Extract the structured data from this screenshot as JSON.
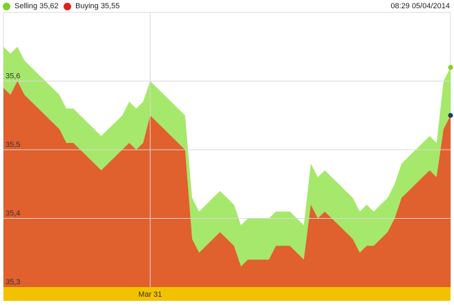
{
  "legend": {
    "selling": {
      "label": "Selling 35,62",
      "color": "#7ed321"
    },
    "buying": {
      "label": "Buying 35,55",
      "color": "#e02020"
    }
  },
  "timestamp": "08:29 05/04/2014",
  "colors": {
    "selling_fill": "#a6e86b",
    "buying_fill": "#e0602e",
    "timeline": "#f2c200",
    "grid": "#d8d8d8",
    "selling_dot": "#7ed321",
    "buying_dot": "#1b3f5e"
  },
  "chart_data": {
    "type": "area",
    "ylim": [
      35.3,
      35.7
    ],
    "yticks": [
      {
        "value": 35.3,
        "label": "35,3"
      },
      {
        "value": 35.4,
        "label": "35,4"
      },
      {
        "value": 35.5,
        "label": "35,5"
      },
      {
        "value": 35.6,
        "label": "35,6"
      }
    ],
    "xtick": {
      "index": 21,
      "label": "Mar 31"
    },
    "grid": true,
    "series": [
      {
        "name": "Selling",
        "values": [
          35.65,
          35.64,
          35.65,
          35.63,
          35.62,
          35.61,
          35.6,
          35.59,
          35.58,
          35.56,
          35.56,
          35.55,
          35.54,
          35.53,
          35.52,
          35.53,
          35.54,
          35.55,
          35.57,
          35.56,
          35.57,
          35.6,
          35.59,
          35.58,
          35.57,
          35.56,
          35.55,
          35.43,
          35.41,
          35.42,
          35.43,
          35.44,
          35.43,
          35.42,
          35.39,
          35.4,
          35.4,
          35.4,
          35.4,
          35.41,
          35.41,
          35.41,
          35.4,
          35.39,
          35.48,
          35.46,
          35.47,
          35.46,
          35.45,
          35.44,
          35.43,
          35.41,
          35.42,
          35.41,
          35.42,
          35.43,
          35.45,
          35.48,
          35.49,
          35.5,
          35.51,
          35.52,
          35.51,
          35.6,
          35.62
        ]
      },
      {
        "name": "Buying",
        "values": [
          35.59,
          35.58,
          35.6,
          35.58,
          35.57,
          35.56,
          35.55,
          35.54,
          35.53,
          35.51,
          35.51,
          35.5,
          35.49,
          35.48,
          35.47,
          35.48,
          35.49,
          35.5,
          35.51,
          35.5,
          35.51,
          35.55,
          35.54,
          35.53,
          35.52,
          35.51,
          35.5,
          35.37,
          35.35,
          35.36,
          35.37,
          35.38,
          35.37,
          35.36,
          35.33,
          35.34,
          35.34,
          35.34,
          35.34,
          35.36,
          35.36,
          35.36,
          35.35,
          35.34,
          35.42,
          35.4,
          35.41,
          35.4,
          35.39,
          35.38,
          35.37,
          35.35,
          35.36,
          35.36,
          35.37,
          35.38,
          35.4,
          35.43,
          35.44,
          35.45,
          35.46,
          35.47,
          35.46,
          35.53,
          35.55
        ]
      }
    ]
  }
}
